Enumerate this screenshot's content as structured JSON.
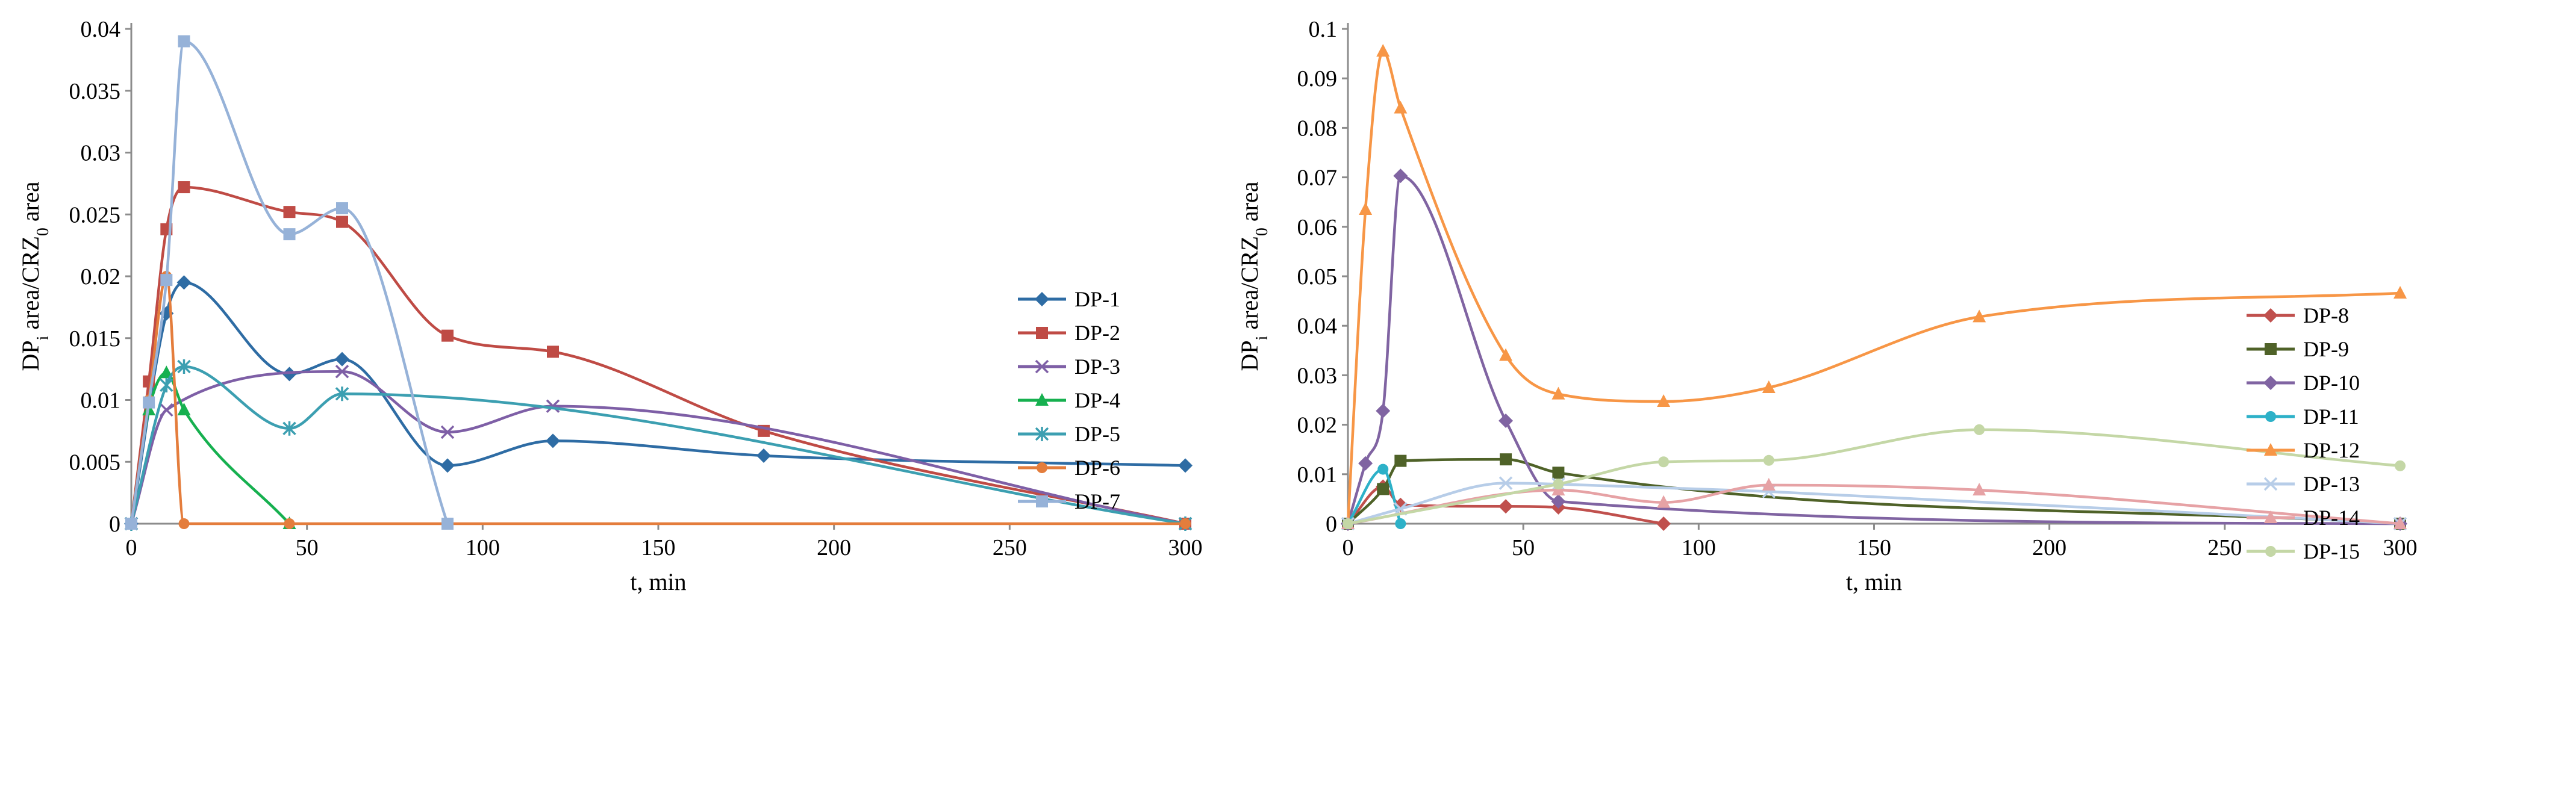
{
  "chart_data": [
    {
      "type": "line",
      "title": "",
      "xlabel": "t, min",
      "ylabel": {
        "pre": "DP",
        "sub1": "i",
        "mid": " area/CRZ",
        "sub2": "0",
        "post": " area"
      },
      "xlim": [
        0,
        300
      ],
      "ylim": [
        0,
        0.04
      ],
      "xticks": [
        "0",
        "50",
        "100",
        "150",
        "200",
        "250",
        "300"
      ],
      "yticks": [
        "0",
        "0.005",
        "0.01",
        "0.015",
        "0.02",
        "0.025",
        "0.03",
        "0.035",
        "0.04"
      ],
      "legend_position": "right",
      "series": [
        {
          "name": "DP-1",
          "color": "#2e6ca4",
          "marker": "diamond",
          "x": [
            0,
            10,
            15,
            45,
            60,
            90,
            120,
            180,
            300
          ],
          "y": [
            0,
            0.017,
            0.0195,
            0.0121,
            0.0133,
            0.0047,
            0.0067,
            0.0055,
            0.0047
          ]
        },
        {
          "name": "DP-2",
          "color": "#bf4b45",
          "marker": "square",
          "x": [
            0,
            5,
            10,
            15,
            45,
            60,
            90,
            120,
            180,
            300
          ],
          "y": [
            0,
            0.0115,
            0.0238,
            0.0272,
            0.0252,
            0.0244,
            0.0152,
            0.0139,
            0.0075,
            0
          ]
        },
        {
          "name": "DP-3",
          "color": "#7e5fa6",
          "marker": "x",
          "x": [
            0,
            10,
            60,
            90,
            120,
            300
          ],
          "y": [
            0,
            0.0092,
            0.0123,
            0.0074,
            0.0095,
            0
          ]
        },
        {
          "name": "DP-4",
          "color": "#16b04f",
          "marker": "triangle",
          "x": [
            0,
            5,
            10,
            15,
            45
          ],
          "y": [
            0,
            0.0092,
            0.0122,
            0.0092,
            0
          ]
        },
        {
          "name": "DP-5",
          "color": "#3c9fb1",
          "marker": "asterisk",
          "x": [
            0,
            10,
            15,
            45,
            60,
            300
          ],
          "y": [
            0,
            0.0112,
            0.0127,
            0.0077,
            0.0105,
            0
          ]
        },
        {
          "name": "DP-6",
          "color": "#e47d3c",
          "marker": "circle",
          "x": [
            0,
            5,
            10,
            15,
            45,
            300
          ],
          "y": [
            0,
            0.01,
            0.02,
            0,
            0,
            0
          ]
        },
        {
          "name": "DP-7",
          "color": "#96b2d8",
          "marker": "square",
          "x": [
            0,
            5,
            10,
            15,
            45,
            60,
            90
          ],
          "y": [
            0,
            0.0098,
            0.0197,
            0.039,
            0.0234,
            0.0255,
            0
          ]
        }
      ]
    },
    {
      "type": "line",
      "title": "",
      "xlabel": "t, min",
      "ylabel": {
        "pre": "DP",
        "sub1": "i",
        "mid": " area/CRZ",
        "sub2": "0",
        "post": " area"
      },
      "xlim": [
        0,
        300
      ],
      "ylim": [
        0,
        0.1
      ],
      "xticks": [
        "0",
        "50",
        "100",
        "150",
        "200",
        "250",
        "300"
      ],
      "yticks": [
        "0",
        "0.01",
        "0.02",
        "0.03",
        "0.04",
        "0.05",
        "0.06",
        "0.07",
        "0.08",
        "0.09",
        "0.1"
      ],
      "legend_position": "right",
      "series": [
        {
          "name": "DP-8",
          "color": "#c0504d",
          "marker": "diamond",
          "x": [
            0,
            10,
            15,
            45,
            60,
            90
          ],
          "y": [
            0,
            0.0075,
            0.0038,
            0.0035,
            0.0033,
            0
          ]
        },
        {
          "name": "DP-9",
          "color": "#4f6228",
          "marker": "square",
          "x": [
            0,
            10,
            15,
            45,
            60,
            300
          ],
          "y": [
            0,
            0.007,
            0.0127,
            0.013,
            0.0103,
            0
          ]
        },
        {
          "name": "DP-10",
          "color": "#8064a2",
          "marker": "diamond",
          "x": [
            0,
            5,
            10,
            15,
            45,
            60,
            300
          ],
          "y": [
            0,
            0.0122,
            0.0228,
            0.0703,
            0.0208,
            0.0045,
            0
          ]
        },
        {
          "name": "DP-11",
          "color": "#2db1c8",
          "marker": "circle",
          "x": [
            0,
            10,
            15
          ],
          "y": [
            0,
            0.011,
            0
          ]
        },
        {
          "name": "DP-12",
          "color": "#f79646",
          "marker": "triangle",
          "x": [
            0,
            5,
            10,
            15,
            45,
            60,
            90,
            120,
            180,
            300
          ],
          "y": [
            0,
            0.0635,
            0.0955,
            0.084,
            0.034,
            0.0262,
            0.0247,
            0.0275,
            0.0418,
            0.0466
          ]
        },
        {
          "name": "DP-13",
          "color": "#b7cde8",
          "marker": "x",
          "x": [
            0,
            15,
            45,
            60,
            120,
            300
          ],
          "y": [
            0,
            0.003,
            0.0082,
            0.008,
            0.0065,
            0
          ]
        },
        {
          "name": "DP-14",
          "color": "#e6a2a5",
          "marker": "triangle",
          "x": [
            0,
            60,
            90,
            120,
            180,
            300
          ],
          "y": [
            0,
            0.0068,
            0.0043,
            0.0078,
            0.0068,
            0
          ]
        },
        {
          "name": "DP-15",
          "color": "#c4d7a6",
          "marker": "circle",
          "x": [
            0,
            60,
            90,
            120,
            180,
            300
          ],
          "y": [
            0,
            0.008,
            0.0125,
            0.0128,
            0.019,
            0.0117
          ]
        }
      ]
    }
  ]
}
